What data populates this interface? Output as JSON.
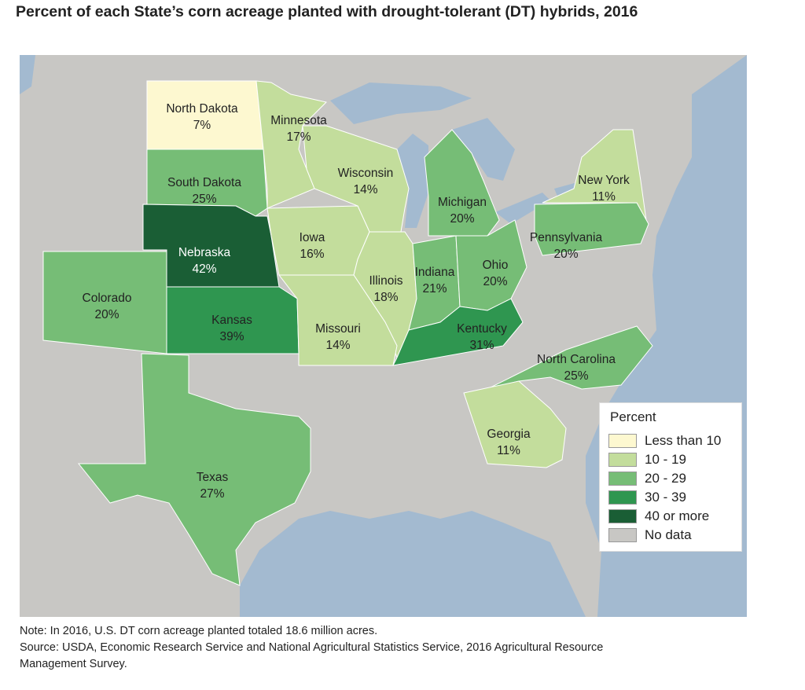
{
  "title": "Percent of each State’s corn acreage planted with drought-tolerant (DT) hybrids, 2016",
  "chart_data": {
    "type": "choropleth",
    "states": [
      {
        "name": "North Dakota",
        "value": 7,
        "label": "7%"
      },
      {
        "name": "Minnesota",
        "value": 17,
        "label": "17%"
      },
      {
        "name": "South Dakota",
        "value": 25,
        "label": "25%"
      },
      {
        "name": "Wisconsin",
        "value": 14,
        "label": "14%"
      },
      {
        "name": "Michigan",
        "value": 20,
        "label": "20%"
      },
      {
        "name": "New York",
        "value": 11,
        "label": "11%"
      },
      {
        "name": "Nebraska",
        "value": 42,
        "label": "42%"
      },
      {
        "name": "Iowa",
        "value": 16,
        "label": "16%"
      },
      {
        "name": "Pennsylvania",
        "value": 20,
        "label": "20%"
      },
      {
        "name": "Illinois",
        "value": 18,
        "label": "18%"
      },
      {
        "name": "Indiana",
        "value": 21,
        "label": "21%"
      },
      {
        "name": "Ohio",
        "value": 20,
        "label": "20%"
      },
      {
        "name": "Colorado",
        "value": 20,
        "label": "20%"
      },
      {
        "name": "Kansas",
        "value": 39,
        "label": "39%"
      },
      {
        "name": "Missouri",
        "value": 14,
        "label": "14%"
      },
      {
        "name": "Kentucky",
        "value": 31,
        "label": "31%"
      },
      {
        "name": "North Carolina",
        "value": 25,
        "label": "25%"
      },
      {
        "name": "Georgia",
        "value": 11,
        "label": "11%"
      },
      {
        "name": "Texas",
        "value": 27,
        "label": "27%"
      }
    ],
    "legend": {
      "title": "Percent",
      "items": [
        {
          "label": "Less than 10",
          "color": "#fdf8d0"
        },
        {
          "label": "10 - 19",
          "color": "#c3dd9c"
        },
        {
          "label": "20 - 29",
          "color": "#76bd76"
        },
        {
          "label": "30 - 39",
          "color": "#2f9650"
        },
        {
          "label": "40 or more",
          "color": "#1a5e35"
        },
        {
          "label": "No data",
          "color": "#c8c7c4"
        }
      ]
    },
    "water_color": "#a3bad0"
  },
  "note": "Note: In 2016, U.S. DT corn acreage planted totaled 18.6 million acres.",
  "source": "Source: USDA, Economic Research Service and National Agricultural Statistics Service, 2016 Agricultural Resource",
  "source2": "Management Survey."
}
